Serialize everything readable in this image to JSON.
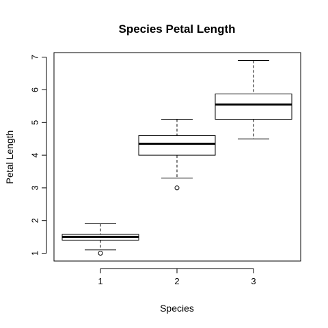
{
  "chart_data": {
    "type": "boxplot",
    "title": "Species Petal Length",
    "xlabel": "Species",
    "ylabel": "Petal Length",
    "categories": [
      "1",
      "2",
      "3"
    ],
    "yticks": [
      "1",
      "2",
      "3",
      "4",
      "5",
      "6",
      "7"
    ],
    "ylim": [
      0.76,
      7.14
    ],
    "grid": false,
    "boxes": [
      {
        "category": "1",
        "whisker_low": 1.1,
        "q1": 1.4,
        "median": 1.5,
        "q3": 1.575,
        "whisker_high": 1.9,
        "outliers": [
          1.0
        ]
      },
      {
        "category": "2",
        "whisker_low": 3.3,
        "q1": 4.0,
        "median": 4.35,
        "q3": 4.6,
        "whisker_high": 5.1,
        "outliers": [
          3.0
        ]
      },
      {
        "category": "3",
        "whisker_low": 4.5,
        "q1": 5.1,
        "median": 5.55,
        "q3": 5.875,
        "whisker_high": 6.9,
        "outliers": []
      }
    ]
  }
}
